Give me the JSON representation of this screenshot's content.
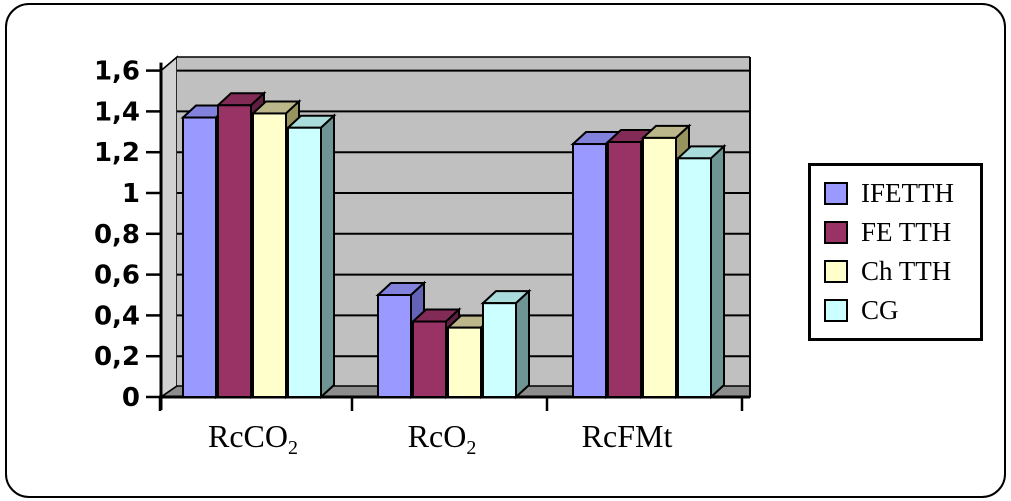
{
  "figure": {
    "background": "#ffffff",
    "border_color": "#000000"
  },
  "chart_data": {
    "type": "bar",
    "style": "3d-clustered-column",
    "title": "",
    "xlabel": "",
    "ylabel": "",
    "categories": [
      "RcCO₂",
      "RcO₂",
      "RcFMt"
    ],
    "categories_rich": [
      {
        "main": "RcCO",
        "sub": "2"
      },
      {
        "main": "RcO",
        "sub": "2"
      },
      {
        "main": "RcFMt",
        "sub": ""
      }
    ],
    "series": [
      {
        "name": "IFETTH",
        "color": "#9999ff",
        "top_color": "#8282dd",
        "side_color": "#6363b8",
        "values": [
          1.37,
          0.5,
          1.24
        ]
      },
      {
        "name": "FE TTH",
        "color": "#993366",
        "top_color": "#822b57",
        "side_color": "#5e1f40",
        "values": [
          1.43,
          0.37,
          1.25
        ]
      },
      {
        "name": "Ch TTH",
        "color": "#ffffcc",
        "top_color": "#bcb78b",
        "side_color": "#97935f",
        "values": [
          1.39,
          0.34,
          1.27
        ]
      },
      {
        "name": "CG",
        "color": "#ccffff",
        "top_color": "#abdcdc",
        "side_color": "#6f9494",
        "values": [
          1.32,
          0.46,
          1.17
        ]
      }
    ],
    "ylim": [
      0,
      1.6
    ],
    "y_tick_values": [
      0,
      0.2,
      0.4,
      0.6,
      0.8,
      1,
      1.2,
      1.4,
      1.6
    ],
    "y_tick_labels": [
      "0",
      "0,2",
      "0,4",
      "0,6",
      "0,8",
      "1",
      "1,2",
      "1,4",
      "1,6"
    ],
    "grid": true,
    "gridline_color": "#000000",
    "plot_bg": "#c0c0c0",
    "wall_color": "#d2d2d2",
    "floor_color": "#8d8d8d",
    "legend_position": "right"
  },
  "legend": {
    "items": [
      {
        "label": "IFETTH",
        "color": "#9999ff"
      },
      {
        "label": "FE TTH",
        "color": "#993366"
      },
      {
        "label": "Ch TTH",
        "color": "#ffffcc"
      },
      {
        "label": "CG",
        "color": "#ccffff"
      }
    ]
  }
}
